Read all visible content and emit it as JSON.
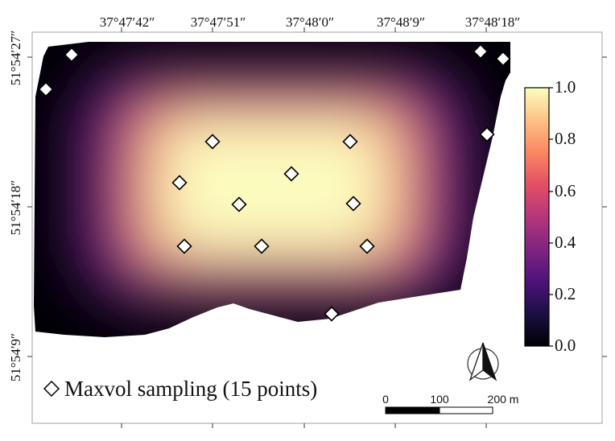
{
  "map": {
    "longitude_labels": [
      "37°47′42″",
      "37°47′51″",
      "37°48′0″",
      "37°48′9″",
      "37°48′18″"
    ],
    "latitude_labels": [
      "51°54′27″",
      "51°54′18″",
      "51°54′9″"
    ],
    "colormap": "magma",
    "marker_style": "white diamond with black outline"
  },
  "colorbar": {
    "ticks": [
      "0.0",
      "0.2",
      "0.4",
      "0.6",
      "0.8",
      "1.0"
    ],
    "range": [
      0.0,
      1.0
    ]
  },
  "legend": {
    "label": "Maxvol sampling (15 points)",
    "symbol": "diamond-icon"
  },
  "scale_bar": {
    "labels": [
      "0",
      "100",
      "200 m"
    ]
  },
  "north_arrow": {
    "icon": "north-arrow-icon"
  }
}
